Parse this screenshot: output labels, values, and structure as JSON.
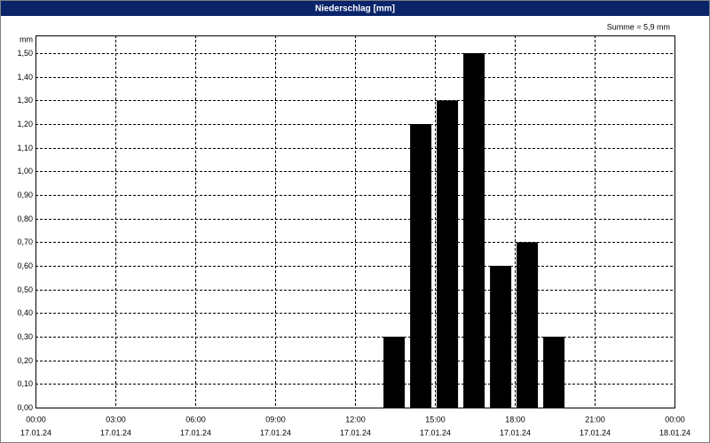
{
  "chart_data": {
    "type": "bar",
    "title": "Niederschlag [mm]",
    "y_unit": "mm",
    "annotation": "Summe = 5,9 mm",
    "x": [
      13,
      14,
      15,
      16,
      17,
      18,
      19
    ],
    "values": [
      0.3,
      1.2,
      1.3,
      1.5,
      0.6,
      0.7,
      0.3
    ],
    "color": "#000000",
    "xlim": [
      0,
      24
    ],
    "xticks": [
      {
        "value": 0,
        "label": "00:00",
        "sublabel": "17.01.24"
      },
      {
        "value": 3,
        "label": "03:00",
        "sublabel": "17.01.24"
      },
      {
        "value": 6,
        "label": "06:00",
        "sublabel": "17.01.24"
      },
      {
        "value": 9,
        "label": "09:00",
        "sublabel": "17.01.24"
      },
      {
        "value": 12,
        "label": "12:00",
        "sublabel": "17.01.24"
      },
      {
        "value": 15,
        "label": "15:00",
        "sublabel": "17.01.24"
      },
      {
        "value": 18,
        "label": "18:00",
        "sublabel": "17.01.24"
      },
      {
        "value": 21,
        "label": "21:00",
        "sublabel": "17.01.24"
      },
      {
        "value": 24,
        "label": "00:00",
        "sublabel": "18.01.24"
      }
    ],
    "ylim": [
      0,
      1.575
    ],
    "yticks": [
      {
        "value": 0,
        "label": "0,00"
      },
      {
        "value": 0.1,
        "label": "0,10"
      },
      {
        "value": 0.2,
        "label": "0,20"
      },
      {
        "value": 0.3,
        "label": "0,30"
      },
      {
        "value": 0.4,
        "label": "0,40"
      },
      {
        "value": 0.5,
        "label": "0,50"
      },
      {
        "value": 0.6,
        "label": "0,60"
      },
      {
        "value": 0.7,
        "label": "0,70"
      },
      {
        "value": 0.8,
        "label": "0,80"
      },
      {
        "value": 0.9,
        "label": "0,90"
      },
      {
        "value": 1.0,
        "label": "1,00"
      },
      {
        "value": 1.1,
        "label": "1,10"
      },
      {
        "value": 1.2,
        "label": "1,20"
      },
      {
        "value": 1.3,
        "label": "1,30"
      },
      {
        "value": 1.4,
        "label": "1,40"
      },
      {
        "value": 1.5,
        "label": "1,50"
      }
    ],
    "grid": true
  }
}
